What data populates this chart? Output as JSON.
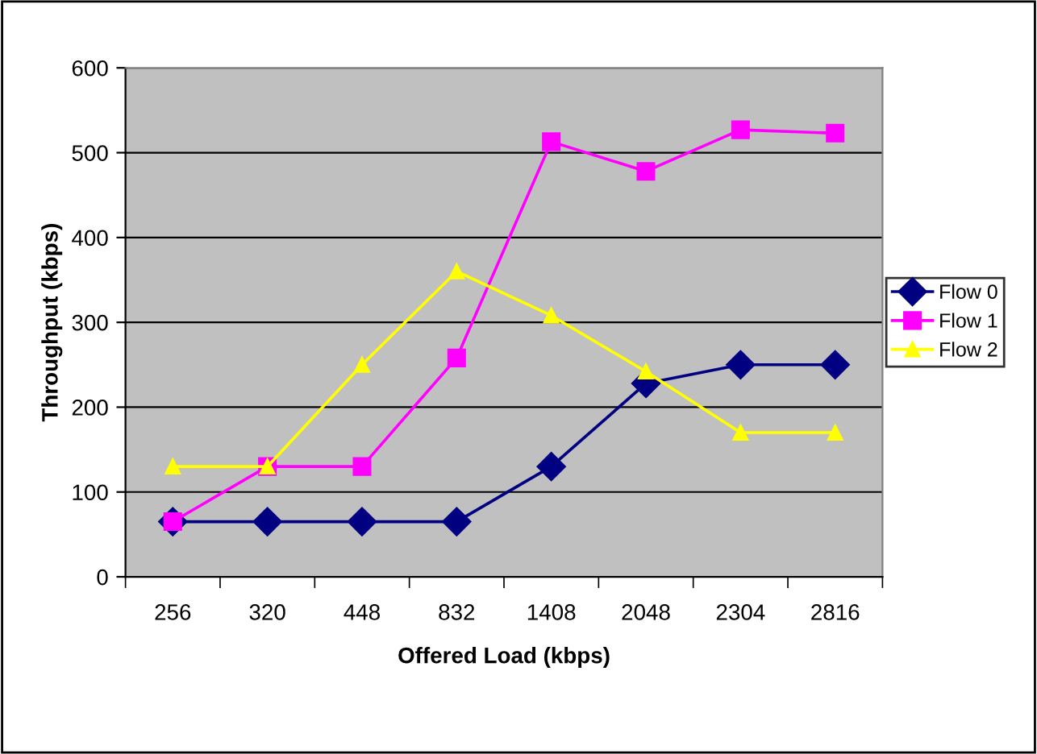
{
  "chart_data": {
    "type": "line",
    "xlabel": "Offered Load (kbps)",
    "ylabel": "Throughput (kbps)",
    "categories": [
      "256",
      "320",
      "448",
      "832",
      "1408",
      "2048",
      "2304",
      "2816"
    ],
    "series": [
      {
        "name": "Flow 0",
        "color": "#000080",
        "marker": "diamond",
        "values": [
          65,
          65,
          65,
          65,
          130,
          228,
          250,
          250
        ]
      },
      {
        "name": "Flow 1",
        "color": "#ff00ff",
        "marker": "square",
        "values": [
          65,
          130,
          130,
          258,
          513,
          478,
          527,
          523
        ]
      },
      {
        "name": "Flow 2",
        "color": "#ffff00",
        "marker": "triangle",
        "values": [
          130,
          130,
          250,
          360,
          308,
          242,
          170,
          170
        ]
      }
    ],
    "ylim": [
      0,
      600
    ],
    "yticks": [
      0,
      100,
      200,
      300,
      400,
      500,
      600
    ],
    "grid": "y",
    "legend": "right"
  }
}
